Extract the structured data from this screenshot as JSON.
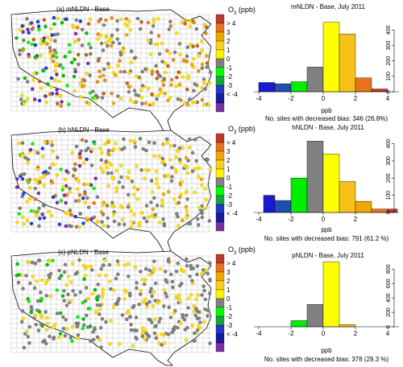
{
  "legend": {
    "title_prefix": "O",
    "title_sub": "3",
    "title_suffix": " (ppb)",
    "labels": [
      "> 4",
      "3",
      "2",
      "1",
      "0",
      "-1",
      "-2",
      "-3",
      "< -4"
    ],
    "colors": [
      "#c0392b",
      "#e8731a",
      "#f0a800",
      "#f6d21a",
      "#fff200",
      "#808080",
      "#00ff00",
      "#11a63b",
      "#2138c8",
      "#1a1aa0",
      "#7b2fa0"
    ]
  },
  "panels": [
    {
      "map_label": "(a) mNLDN - Base",
      "hist_title": "mNLDN - Base, July 2011",
      "xlabel": "ppb",
      "caption": "No. sites with decreased bias: 346 (26.8%)",
      "map_palette": [
        "#808080",
        "#808080",
        "#ffdf00",
        "#ffdf00",
        "#e88a1a",
        "#e88a1a",
        "#c9600f",
        "#f0a800",
        "#808080",
        "#ffdf00"
      ],
      "west_palette": [
        "#00c000",
        "#1f3fd0",
        "#00ff00",
        "#808080",
        "#7b2fa0",
        "#ffdf00"
      ]
    },
    {
      "map_label": "(b) hNLDN - Base",
      "hist_title": "hNLDN - Base, July 2011",
      "xlabel": "ppb",
      "caption": "No. sites with decreased bias: 791 (61.2 %)",
      "map_palette": [
        "#808080",
        "#ffdf00",
        "#ffdf00",
        "#ffdf00",
        "#808080",
        "#f0a800",
        "#808080",
        "#ffdf00"
      ],
      "west_palette": [
        "#1f3fd0",
        "#7b2fa0",
        "#00ff00",
        "#808080",
        "#ffdf00",
        "#e8731a"
      ]
    },
    {
      "map_label": "(c) pNLDN - Base",
      "hist_title": "pNLDN - Base, July 2011",
      "xlabel": "ppb",
      "caption": "No. sites with decreased bias: 378 (29.3 %)",
      "map_palette": [
        "#808080",
        "#808080",
        "#ffdf00",
        "#808080",
        "#ffdf00",
        "#808080"
      ],
      "west_palette": [
        "#00ff00",
        "#808080",
        "#00c000",
        "#808080",
        "#ffdf00"
      ]
    }
  ],
  "chart_data": [
    {
      "type": "bar",
      "title": "mNLDN - Base, July 2011",
      "xlabel": "ppb",
      "ylabel": "",
      "bin_edges": [
        -4,
        -3,
        -2,
        -1,
        0,
        1,
        2,
        3,
        4
      ],
      "values": [
        60,
        52,
        65,
        160,
        450,
        375,
        90,
        18
      ],
      "colors": [
        "#1a1ad0",
        "#1f4fb0",
        "#00ee00",
        "#808080",
        "#ffff00",
        "#f6c21a",
        "#e8731a",
        "#c0392b"
      ],
      "xlim": [
        -4.3,
        4.7
      ],
      "ylim": [
        0,
        480
      ],
      "xticks": [
        -4,
        -2,
        0,
        2,
        4
      ],
      "yticks": [
        0,
        100,
        200,
        300,
        400
      ]
    },
    {
      "type": "bar",
      "title": "hNLDN - Base, July 2011",
      "xlabel": "ppb",
      "ylabel": "",
      "bin_edges": [
        -4,
        -3,
        -2,
        -1,
        0,
        1,
        2,
        3,
        4
      ],
      "values": [
        100,
        70,
        200,
        415,
        340,
        180,
        65,
        20,
        20
      ],
      "bins_override": [
        -3.7,
        -3,
        -2,
        -1,
        0,
        1,
        2,
        3,
        4,
        4.6
      ],
      "colors": [
        "#1a1ad0",
        "#1f4fb0",
        "#00ee00",
        "#808080",
        "#ffff00",
        "#f6c21a",
        "#f0a800",
        "#e8731a",
        "#c0392b"
      ],
      "xlim": [
        -4.3,
        4.7
      ],
      "ylim": [
        0,
        440
      ],
      "xticks": [
        -4,
        -2,
        0,
        2
      ],
      "yticks": [
        0,
        100,
        200,
        300,
        400
      ]
    },
    {
      "type": "bar",
      "title": "pNLDN - Base, July 2011",
      "xlabel": "ppb",
      "ylabel": "",
      "bin_edges": [
        -2,
        -1,
        0,
        1,
        2
      ],
      "values": [
        85,
        310,
        900,
        30
      ],
      "colors": [
        "#00ee00",
        "#808080",
        "#ffff00",
        "#f6c21a"
      ],
      "xlim": [
        -4.3,
        4.7
      ],
      "ylim": [
        0,
        960
      ],
      "xticks": [
        -4,
        -2,
        0,
        2,
        4
      ],
      "yticks": [
        0,
        200,
        400,
        600,
        800
      ]
    }
  ]
}
